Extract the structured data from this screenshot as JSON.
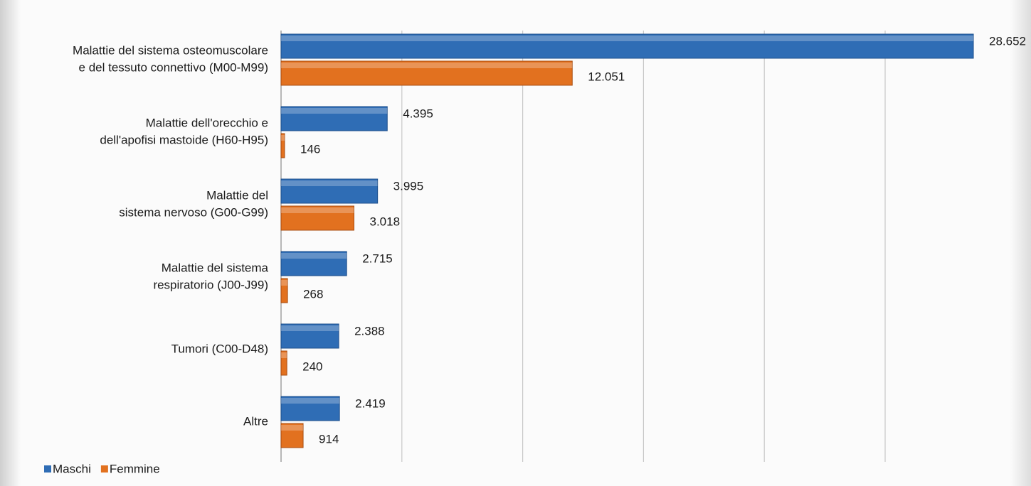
{
  "chart_data": {
    "type": "hbar",
    "categories": [
      [
        "Malattie del sistema osteomuscolare",
        "e del tessuto connettivo (M00-M99)"
      ],
      [
        "Malattie dell'orecchio e",
        "dell'apofisi mastoide (H60-H95)"
      ],
      [
        "Malattie del",
        "sistema nervoso (G00-G99)"
      ],
      [
        "Malattie del sistema",
        "respiratorio (J00-J99)"
      ],
      [
        "Tumori (C00-D48)"
      ],
      [
        "Altre"
      ]
    ],
    "series": [
      {
        "name": "Maschi",
        "color": "#2f6db5",
        "values": [
          28652,
          4395,
          3995,
          2715,
          2388,
          2419
        ],
        "value_labels": [
          "28.652",
          "4.395",
          "3.995",
          "2.715",
          "2.388",
          "2.419"
        ]
      },
      {
        "name": "Femmine",
        "color": "#e2711f",
        "values": [
          12051,
          146,
          3018,
          268,
          240,
          914
        ],
        "value_labels": [
          "12.051",
          "146",
          "3.018",
          "268",
          "240",
          "914"
        ]
      }
    ],
    "xlim": [
      0,
      30000
    ],
    "xticks": [
      0,
      5000,
      10000,
      15000,
      20000,
      25000
    ],
    "grid": true
  }
}
